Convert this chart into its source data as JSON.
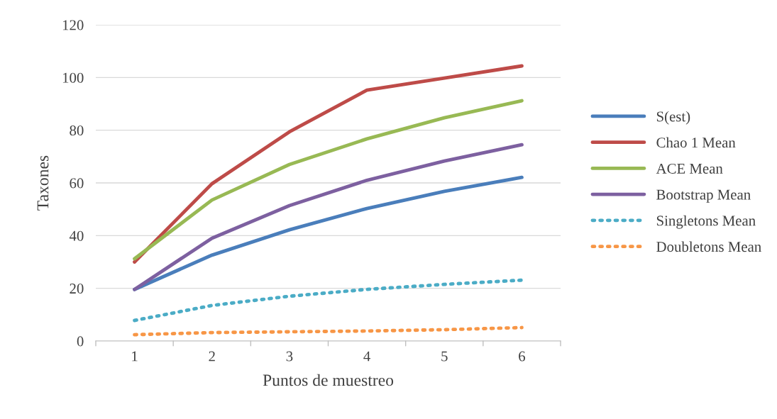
{
  "chart_data": {
    "type": "line",
    "xlabel": "Puntos de muestreo",
    "ylabel": "Taxones",
    "categories": [
      "1",
      "2",
      "3",
      "4",
      "5",
      "6"
    ],
    "ylim": [
      0,
      120
    ],
    "yticks": [
      0,
      20,
      40,
      60,
      80,
      100,
      120
    ],
    "grid": "y",
    "legend": "right",
    "series": [
      {
        "name": "S(est)",
        "color": "#4a7ebb",
        "line_style": "solid",
        "values": [
          19.6,
          32.6,
          42.2,
          50.3,
          56.8,
          62.1
        ]
      },
      {
        "name": "Chao 1 Mean",
        "color": "#be4b48",
        "line_style": "solid",
        "values": [
          30,
          59.7,
          79.4,
          95.2,
          99.8,
          104.4
        ]
      },
      {
        "name": "ACE Mean",
        "color": "#98b954",
        "line_style": "solid",
        "values": [
          31.2,
          53.5,
          67,
          76.7,
          84.7,
          91.2
        ]
      },
      {
        "name": "Bootstrap Mean",
        "color": "#7d60a0",
        "line_style": "solid",
        "values": [
          19.6,
          39,
          51.4,
          61,
          68.3,
          74.5
        ]
      },
      {
        "name": "Singletons Mean",
        "color": "#4bacc6",
        "line_style": "dotted",
        "values": [
          7.8,
          13.5,
          17,
          19.6,
          21.5,
          23.1
        ]
      },
      {
        "name": "Doubletons Mean",
        "color": "#f79646",
        "line_style": "dotted",
        "values": [
          2.4,
          3.2,
          3.5,
          3.8,
          4.3,
          5.1
        ]
      }
    ]
  }
}
